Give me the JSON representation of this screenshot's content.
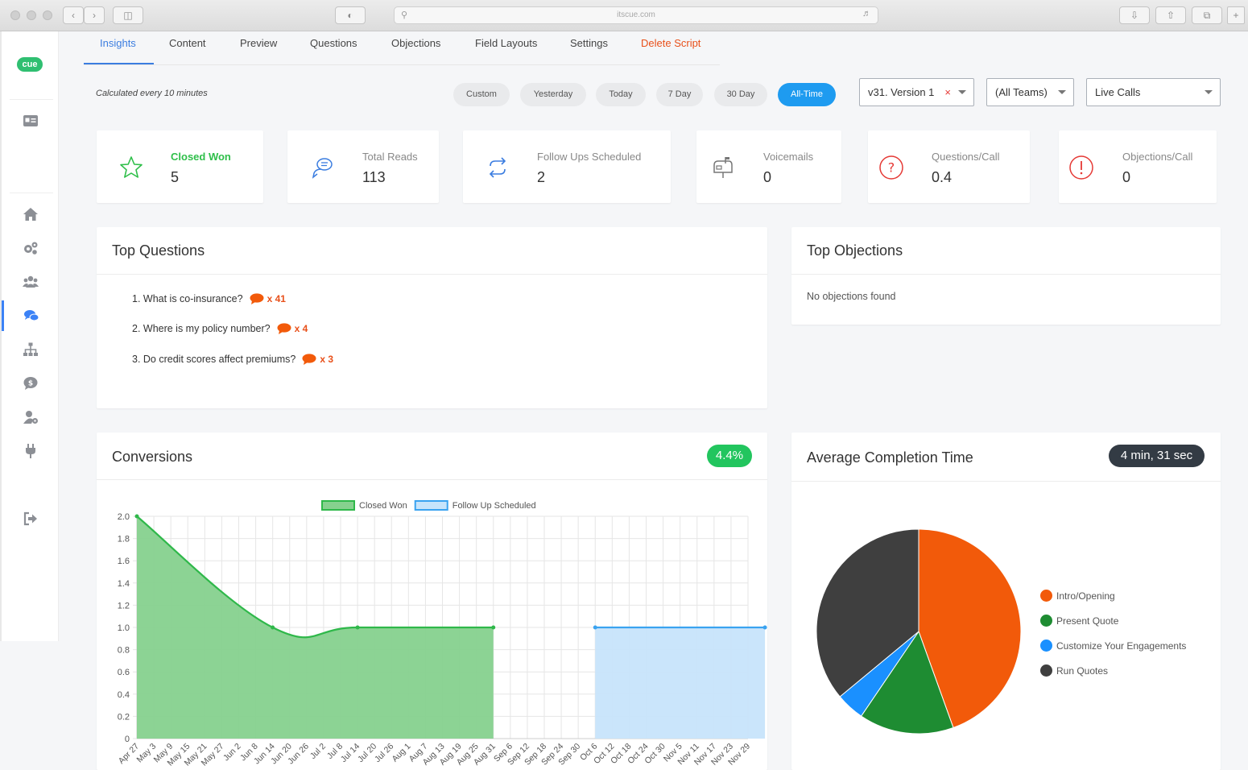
{
  "browser": {
    "url": "itscue.com"
  },
  "tabs": [
    {
      "label": "Insights"
    },
    {
      "label": "Content"
    },
    {
      "label": "Preview"
    },
    {
      "label": "Questions"
    },
    {
      "label": "Objections"
    },
    {
      "label": "Field Layouts"
    },
    {
      "label": "Settings"
    },
    {
      "label": "Delete Script"
    }
  ],
  "logo": "cue",
  "filters": {
    "note": "Calculated every 10 minutes",
    "ranges": [
      "Custom",
      "Yesterday",
      "Today",
      "7 Day",
      "30 Day",
      "All-Time"
    ],
    "active_range": "All-Time",
    "version": "v31. Version 1",
    "clear_symbol": "×",
    "team": "(All Teams)",
    "source": "Live Calls"
  },
  "stats": [
    {
      "label": "Closed Won",
      "value": "5",
      "icon": "star-icon"
    },
    {
      "label": "Total Reads",
      "value": "113",
      "icon": "chat-bubbles-icon"
    },
    {
      "label": "Follow Ups Scheduled",
      "value": "2",
      "icon": "refresh-icon"
    },
    {
      "label": "Voicemails",
      "value": "0",
      "icon": "mailbox-icon"
    },
    {
      "label": "Questions/Call",
      "value": "0.4",
      "icon": "question-icon"
    },
    {
      "label": "Objections/Call",
      "value": "0",
      "icon": "exclamation-icon"
    }
  ],
  "top_questions": {
    "title": "Top Questions",
    "items": [
      {
        "text": "1. What is co-insurance?",
        "count": "x 41"
      },
      {
        "text": "2. Where is my policy number?",
        "count": "x 4"
      },
      {
        "text": "3. Do credit scores affect premiums?",
        "count": "x 3"
      }
    ]
  },
  "top_objections": {
    "title": "Top Objections",
    "empty": "No objections found"
  },
  "conversions": {
    "title": "Conversions",
    "badge": "4.4%"
  },
  "completion": {
    "title": "Average Completion Time",
    "badge": "4 min, 31 sec"
  },
  "colors": {
    "accent": "#3b7de0",
    "danger": "#e8501a",
    "green": "#2fbf4a",
    "blue": "#1e9bf0"
  },
  "chart_data": [
    {
      "type": "area",
      "x": [
        "Apr 27",
        "May 3",
        "May 9",
        "May 15",
        "May 21",
        "May 27",
        "Jun 2",
        "Jun 8",
        "Jun 14",
        "Jun 20",
        "Jun 26",
        "Jul 2",
        "Jul 8",
        "Jul 14",
        "Jul 20",
        "Jul 26",
        "Aug 1",
        "Aug 7",
        "Aug 13",
        "Aug 19",
        "Aug 25",
        "Aug 31",
        "Sep 6",
        "Sep 12",
        "Sep 18",
        "Sep 24",
        "Sep 30",
        "Oct 6",
        "Oct 12",
        "Oct 18",
        "Oct 24",
        "Oct 30",
        "Nov 5",
        "Nov 11",
        "Nov 17",
        "Nov 23",
        "Nov 29"
      ],
      "y_ticks": [
        "0",
        "0.2",
        "0.4",
        "0.6",
        "0.8",
        "1.0",
        "1.2",
        "1.4",
        "1.6",
        "1.8",
        "2.0"
      ],
      "ylim": [
        0,
        2
      ],
      "grid": true,
      "legend_position": "top",
      "series": [
        {
          "name": "Closed Won",
          "color": "#2fb84a",
          "fill": "#86d18e",
          "points": [
            [
              0,
              2.0
            ],
            [
              8,
              1.0
            ],
            [
              13,
              1.0
            ],
            [
              21,
              1.0
            ]
          ]
        },
        {
          "name": "Follow Up Scheduled",
          "color": "#3aa3f0",
          "fill": "#c7e4fb",
          "points": [
            [
              27,
              1.0
            ],
            [
              37,
              1.0
            ]
          ]
        }
      ]
    },
    {
      "type": "pie",
      "labels": [
        "Intro/Opening",
        "Present Quote",
        "Customize Your Engagements",
        "Run Quotes"
      ],
      "values": [
        44.5,
        15,
        4.5,
        36
      ],
      "colors": [
        "#f25a0a",
        "#1e8c32",
        "#1a90ff",
        "#3f3f3f"
      ],
      "legend_position": "right"
    }
  ]
}
